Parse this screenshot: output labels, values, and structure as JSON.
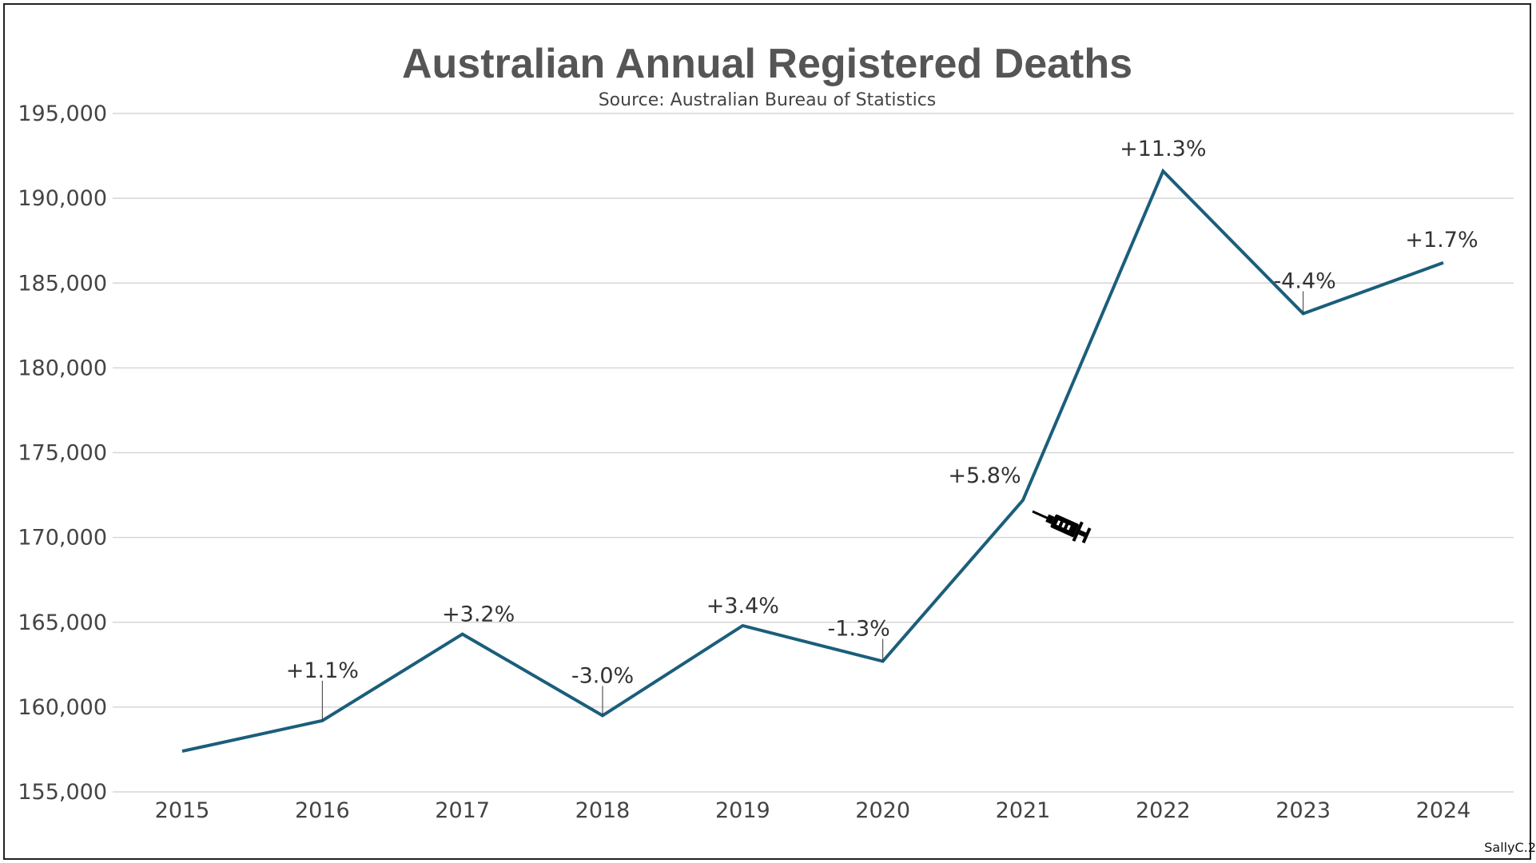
{
  "chart_data": {
    "type": "line",
    "title": "Australian Annual Registered Deaths",
    "subtitle": "Source: Australian Bureau of Statistics",
    "credit": "SallyC.2",
    "xlabel": "",
    "ylabel": "",
    "x": [
      "2015",
      "2016",
      "2017",
      "2018",
      "2019",
      "2020",
      "2021",
      "2022",
      "2023",
      "2024"
    ],
    "values": [
      157400,
      159200,
      164300,
      159500,
      164800,
      162700,
      172200,
      191600,
      183200,
      186200
    ],
    "annotations": [
      "",
      "+1.1%",
      "+3.2%",
      "-3.0%",
      "+3.4%",
      "-1.3%",
      "+5.8%",
      "+11.3%",
      "-4.4%",
      "+1.7%"
    ],
    "ylim": [
      155000,
      195000
    ],
    "yticks": [
      155000,
      160000,
      165000,
      170000,
      175000,
      180000,
      185000,
      190000,
      195000
    ],
    "ytick_labels": [
      "155,000",
      "160,000",
      "165,000",
      "170,000",
      "175,000",
      "180,000",
      "185,000",
      "190,000",
      "195,000"
    ],
    "grid": "horizontal",
    "line_color": "#1b5e7b",
    "icon": "syringe-icon"
  }
}
